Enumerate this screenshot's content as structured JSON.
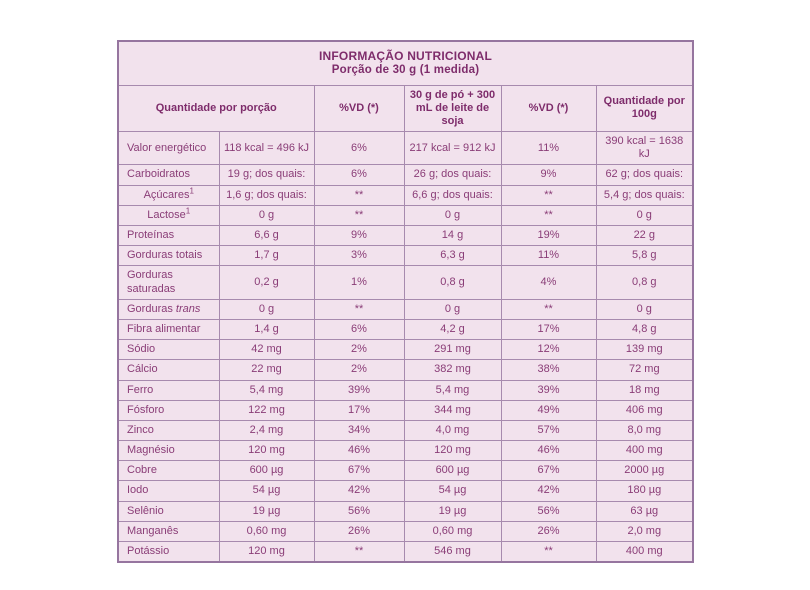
{
  "theme": {
    "bg_page": "#ffffff",
    "bg_cell": "#f2e2ed",
    "border_color": "#a78aae",
    "border_outer": "#96759f",
    "text_strong": "#7e2c6b",
    "text_normal": "#8a3d77"
  },
  "table": {
    "title": "INFORMAÇÃO NUTRICIONAL",
    "subtitle": "Porção de 30 g (1 medida)",
    "columns": {
      "col_portion": "Quantidade por porção",
      "col_vd1": "%VD (*)",
      "col_prepared": "30 g de pó + 300 mL de leite de soja",
      "col_vd2": "%VD (*)",
      "col_100g": "Quantidade por 100g"
    },
    "rows": [
      {
        "label": "Valor energético",
        "indent": false,
        "cells": [
          "118 kcal = 496 kJ",
          "6%",
          "217 kcal = 912 kJ",
          "11%",
          "390 kcal = 1638 kJ"
        ]
      },
      {
        "label": "Carboidratos",
        "indent": false,
        "cells": [
          "19 g; dos quais:",
          "6%",
          "26 g; dos quais:",
          "9%",
          "62 g; dos quais:"
        ]
      },
      {
        "label": "Açúcares",
        "label_sup": "1",
        "indent": true,
        "cells": [
          "1,6 g; dos quais:",
          "**",
          "6,6 g; dos quais:",
          "**",
          "5,4 g; dos quais:"
        ]
      },
      {
        "label": "Lactose",
        "label_sup": "1",
        "indent": true,
        "cells": [
          "0 g",
          "**",
          "0 g",
          "**",
          "0 g"
        ]
      },
      {
        "label": "Proteínas",
        "indent": false,
        "cells": [
          "6,6 g",
          "9%",
          "14 g",
          "19%",
          "22 g"
        ]
      },
      {
        "label": "Gorduras totais",
        "indent": false,
        "cells": [
          "1,7 g",
          "3%",
          "6,3 g",
          "11%",
          "5,8 g"
        ]
      },
      {
        "label": "Gorduras saturadas",
        "indent": false,
        "cells": [
          "0,2 g",
          "1%",
          "0,8 g",
          "4%",
          "0,8 g"
        ]
      },
      {
        "label": "Gorduras ",
        "label_italic": "trans",
        "indent": false,
        "cells": [
          "0 g",
          "**",
          "0 g",
          "**",
          "0 g"
        ]
      },
      {
        "label": "Fibra alimentar",
        "indent": false,
        "cells": [
          "1,4 g",
          "6%",
          "4,2 g",
          "17%",
          "4,8 g"
        ]
      },
      {
        "label": "Sódio",
        "indent": false,
        "cells": [
          "42 mg",
          "2%",
          "291 mg",
          "12%",
          "139 mg"
        ]
      },
      {
        "label": "Cálcio",
        "indent": false,
        "cells": [
          "22 mg",
          "2%",
          "382 mg",
          "38%",
          "72 mg"
        ]
      },
      {
        "label": "Ferro",
        "indent": false,
        "cells": [
          "5,4 mg",
          "39%",
          "5,4 mg",
          "39%",
          "18 mg"
        ]
      },
      {
        "label": "Fósforo",
        "indent": false,
        "cells": [
          "122 mg",
          "17%",
          "344 mg",
          "49%",
          "406 mg"
        ]
      },
      {
        "label": "Zinco",
        "indent": false,
        "cells": [
          "2,4 mg",
          "34%",
          "4,0 mg",
          "57%",
          "8,0 mg"
        ]
      },
      {
        "label": "Magnésio",
        "indent": false,
        "cells": [
          "120 mg",
          "46%",
          "120 mg",
          "46%",
          "400 mg"
        ]
      },
      {
        "label": "Cobre",
        "indent": false,
        "cells": [
          "600 µg",
          "67%",
          "600 µg",
          "67%",
          "2000 µg"
        ]
      },
      {
        "label": "Iodo",
        "indent": false,
        "cells": [
          "54 µg",
          "42%",
          "54 µg",
          "42%",
          "180 µg"
        ]
      },
      {
        "label": "Selênio",
        "indent": false,
        "cells": [
          "19 µg",
          "56%",
          "19 µg",
          "56%",
          "63 µg"
        ]
      },
      {
        "label": "Manganês",
        "indent": false,
        "cells": [
          "0,60 mg",
          "26%",
          "0,60 mg",
          "26%",
          "2,0 mg"
        ]
      },
      {
        "label": "Potássio",
        "indent": false,
        "cells": [
          "120 mg",
          "**",
          "546 mg",
          "**",
          "400 mg"
        ]
      }
    ]
  }
}
